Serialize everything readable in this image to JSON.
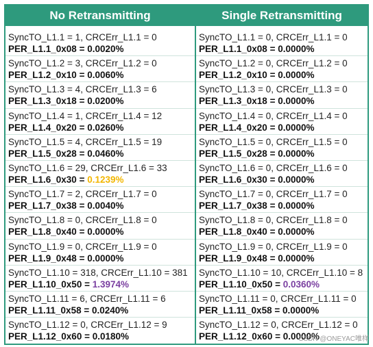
{
  "headers": {
    "left": "No Retransmitting",
    "right": "Single Retransmitting"
  },
  "left": [
    {
      "a": "SyncTO_L1.1 = 1, CRCErr_L1.1 = 0",
      "p": "PER_L1.1_0x08 = ",
      "v": "0.0020%"
    },
    {
      "a": "SyncTO_L1.2 = 3, CRCErr_L1.2 = 0",
      "p": "PER_L1.2_0x10 = ",
      "v": "0.0060%"
    },
    {
      "a": "SyncTO_L1.3 = 4, CRCErr_L1.3 = 6",
      "p": "PER_L1.3_0x18 = ",
      "v": "0.0200%"
    },
    {
      "a": "SyncTO_L1.4 = 1, CRCErr_L1.4 = 12",
      "p": "PER_L1.4_0x20 = ",
      "v": "0.0260%"
    },
    {
      "a": "SyncTO_L1.5 = 4, CRCErr_L1.5 = 19",
      "p": "PER_L1.5_0x28 = ",
      "v": "0.0460%"
    },
    {
      "a": "SyncTO_L1.6 = 29, CRCErr_L1.6 = 33",
      "p": "PER_L1.6_0x30 = ",
      "v": "0.1239%"
    },
    {
      "a": "SyncTO_L1.7 = 2, CRCErr_L1.7 = 0",
      "p": "PER_L1.7_0x38 = ",
      "v": "0.0040%"
    },
    {
      "a": "SyncTO_L1.8 = 0, CRCErr_L1.8 = 0",
      "p": "PER_L1.8_0x40 = ",
      "v": "0.0000%"
    },
    {
      "a": "SyncTO_L1.9 = 0, CRCErr_L1.9 = 0",
      "p": "PER_L1.9_0x48 = ",
      "v": "0.0000%"
    },
    {
      "a": "SyncTO_L1.10 = 318, CRCErr_L1.10 = 381",
      "p": "PER_L1.10_0x50 = ",
      "v": "1.3974%"
    },
    {
      "a": "SyncTO_L1.11 = 6, CRCErr_L1.11 = 6",
      "p": "PER_L1.11_0x58 = ",
      "v": "0.0240%"
    },
    {
      "a": "SyncTO_L1.12 = 0, CRCErr_L1.12 = 9",
      "p": "PER_L1.12_0x60 = ",
      "v": "0.0180%"
    }
  ],
  "right": [
    {
      "a": "SyncTO_L1.1 = 0, CRCErr_L1.1 = 0",
      "p": "PER_L1.1_0x08 = ",
      "v": "0.0000%"
    },
    {
      "a": "SyncTO_L1.2 = 0, CRCErr_L1.2 = 0",
      "p": "PER_L1.2_0x10 = ",
      "v": "0.0000%"
    },
    {
      "a": "SyncTO_L1.3 = 0, CRCErr_L1.3 = 0",
      "p": "PER_L1.3_0x18 = ",
      "v": "0.0000%"
    },
    {
      "a": "SyncTO_L1.4 = 0, CRCErr_L1.4 = 0",
      "p": "PER_L1.4_0x20 = ",
      "v": "0.0000%"
    },
    {
      "a": "SyncTO_L1.5 = 0, CRCErr_L1.5 = 0",
      "p": "PER_L1.5_0x28 = ",
      "v": "0.0000%"
    },
    {
      "a": "SyncTO_L1.6 = 0, CRCErr_L1.6 = 0",
      "p": "PER_L1.6_0x30 = ",
      "v": "0.0000%"
    },
    {
      "a": "SyncTO_L1.7 = 0, CRCErr_L1.7 = 0",
      "p": "PER_L1.7_0x38 = ",
      "v": "0.0000%"
    },
    {
      "a": "SyncTO_L1.8 = 0, CRCErr_L1.8 = 0",
      "p": "PER_L1.8_0x40 = ",
      "v": "0.0000%"
    },
    {
      "a": "SyncTO_L1.9 = 0, CRCErr_L1.9 = 0",
      "p": "PER_L1.9_0x48 = ",
      "v": "0.0000%"
    },
    {
      "a": "SyncTO_L1.10 = 10, CRCErr_L1.10 = 8",
      "p": "PER_L1.10_0x50 = ",
      "v": "0.0360%"
    },
    {
      "a": "SyncTO_L1.11 = 0, CRCErr_L1.11 = 0",
      "p": "PER_L1.11_0x58 = ",
      "v": "0.0000%"
    },
    {
      "a": "SyncTO_L1.12 = 0, CRCErr_L1.12 = 0",
      "p": "PER_L1.12_0x60 = ",
      "v": "0.0000%"
    }
  ],
  "highlight_colors": {
    "warning": "#f2b600",
    "critical": "#7a3fa0",
    "header_bg": "#2e9a7d"
  },
  "watermark": "CSDN @ONEYAC唯样"
}
